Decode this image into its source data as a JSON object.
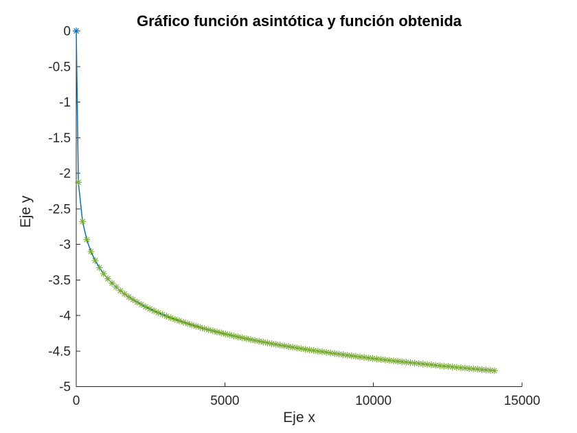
{
  "chart_data": {
    "type": "line",
    "title": "Gráfico función asintótica y función obtenida",
    "xlabel": "Eje x",
    "ylabel": "Eje y",
    "xlim": [
      0,
      15000
    ],
    "ylim": [
      -5,
      0
    ],
    "xticks": [
      0,
      5000,
      10000,
      15000
    ],
    "xtick_labels": [
      "0",
      "5000",
      "10000",
      "15000"
    ],
    "yticks": [
      0,
      -0.5,
      -1,
      -1.5,
      -2,
      -2.5,
      -3,
      -3.5,
      -4,
      -4.5,
      -5
    ],
    "ytick_labels": [
      "0",
      "-0.5",
      "-1",
      "-1.5",
      "-2",
      "-2.5",
      "-3",
      "-3.5",
      "-4",
      "-4.5",
      "-5"
    ],
    "grid": false,
    "legend": "none",
    "background": "#ffffff",
    "axis_color": "#262626",
    "title_color": "#000000",
    "series": [
      {
        "name": "función asintótica",
        "style": "solid-line",
        "color": "#0072BD",
        "line_width": 1.5,
        "marker": "asterisk",
        "marker_visible_only_at_first_point": true,
        "x": [
          0,
          71,
          212,
          354,
          495,
          636,
          778,
          919,
          1061,
          1202,
          1343,
          1485,
          1626,
          1768,
          1909,
          2051,
          2192,
          2333,
          2475,
          2616,
          2758,
          2899,
          3041,
          3182,
          3323,
          3465,
          3606,
          3748,
          3889,
          4030,
          4172,
          4313,
          4455,
          4596,
          4738,
          4879,
          5020,
          5162,
          5303,
          5445,
          5586,
          5728,
          5869,
          6010,
          6152,
          6293,
          6435,
          6576,
          6717,
          6859,
          7000,
          7142,
          7283,
          7425,
          7566,
          7707,
          7849,
          7990,
          8132,
          8273,
          8414,
          8556,
          8697,
          8839,
          8980,
          9122,
          9263,
          9404,
          9546,
          9687,
          9829,
          9970,
          10112,
          10253,
          10394,
          10536,
          10677,
          10819,
          10960,
          11101,
          11243,
          11384,
          11526,
          11667,
          11809,
          11950,
          12091,
          12233,
          12374,
          12516,
          12657,
          12799,
          12940,
          13081,
          13223,
          13364,
          13506,
          13647,
          13788,
          13930,
          14071
        ],
        "y": [
          0,
          -2.129,
          -2.679,
          -2.934,
          -3.102,
          -3.228,
          -3.328,
          -3.412,
          -3.483,
          -3.546,
          -3.601,
          -3.652,
          -3.697,
          -3.739,
          -3.777,
          -3.813,
          -3.846,
          -3.878,
          -3.907,
          -3.935,
          -3.961,
          -3.986,
          -4.01,
          -4.033,
          -4.054,
          -4.075,
          -4.095,
          -4.114,
          -4.133,
          -4.151,
          -4.168,
          -4.185,
          -4.201,
          -4.216,
          -4.232,
          -4.246,
          -4.261,
          -4.274,
          -4.288,
          -4.301,
          -4.314,
          -4.326,
          -4.339,
          -4.351,
          -4.362,
          -4.374,
          -4.385,
          -4.396,
          -4.406,
          -4.417,
          -4.427,
          -4.437,
          -4.447,
          -4.456,
          -4.466,
          -4.475,
          -4.484,
          -4.493,
          -4.502,
          -4.51,
          -4.519,
          -4.527,
          -4.535,
          -4.543,
          -4.551,
          -4.559,
          -4.567,
          -4.574,
          -4.582,
          -4.589,
          -4.597,
          -4.604,
          -4.611,
          -4.618,
          -4.625,
          -4.631,
          -4.638,
          -4.645,
          -4.651,
          -4.657,
          -4.664,
          -4.67,
          -4.676,
          -4.682,
          -4.688,
          -4.694,
          -4.7,
          -4.706,
          -4.712,
          -4.717,
          -4.723,
          -4.729,
          -4.734,
          -4.739,
          -4.745,
          -4.75,
          -4.755,
          -4.761,
          -4.766,
          -4.771,
          -4.776
        ]
      },
      {
        "name": "función obtenida",
        "style": "markers-only",
        "color": "#77AC30",
        "marker": "asterisk",
        "x": [
          71,
          212,
          354,
          495,
          636,
          778,
          919,
          1061,
          1202,
          1343,
          1485,
          1626,
          1768,
          1909,
          2051,
          2192,
          2333,
          2475,
          2616,
          2758,
          2899,
          3041,
          3182,
          3323,
          3465,
          3606,
          3748,
          3889,
          4030,
          4172,
          4313,
          4455,
          4596,
          4738,
          4879,
          5020,
          5162,
          5303,
          5445,
          5586,
          5728,
          5869,
          6010,
          6152,
          6293,
          6435,
          6576,
          6717,
          6859,
          7000,
          7142,
          7283,
          7425,
          7566,
          7707,
          7849,
          7990,
          8132,
          8273,
          8414,
          8556,
          8697,
          8839,
          8980,
          9122,
          9263,
          9404,
          9546,
          9687,
          9829,
          9970,
          10112,
          10253,
          10394,
          10536,
          10677,
          10819,
          10960,
          11101,
          11243,
          11384,
          11526,
          11667,
          11809,
          11950,
          12091,
          12233,
          12374,
          12516,
          12657,
          12799,
          12940,
          13081,
          13223,
          13364,
          13506,
          13647,
          13788,
          13930,
          14071
        ],
        "y": [
          -2.129,
          -2.679,
          -2.934,
          -3.102,
          -3.228,
          -3.328,
          -3.412,
          -3.483,
          -3.546,
          -3.601,
          -3.652,
          -3.697,
          -3.739,
          -3.777,
          -3.813,
          -3.846,
          -3.878,
          -3.907,
          -3.935,
          -3.961,
          -3.986,
          -4.01,
          -4.033,
          -4.054,
          -4.075,
          -4.095,
          -4.114,
          -4.133,
          -4.151,
          -4.168,
          -4.185,
          -4.201,
          -4.216,
          -4.232,
          -4.246,
          -4.261,
          -4.274,
          -4.288,
          -4.301,
          -4.314,
          -4.326,
          -4.339,
          -4.351,
          -4.362,
          -4.374,
          -4.385,
          -4.396,
          -4.406,
          -4.417,
          -4.427,
          -4.437,
          -4.447,
          -4.456,
          -4.466,
          -4.475,
          -4.484,
          -4.493,
          -4.502,
          -4.51,
          -4.519,
          -4.527,
          -4.535,
          -4.543,
          -4.551,
          -4.559,
          -4.567,
          -4.574,
          -4.582,
          -4.589,
          -4.597,
          -4.604,
          -4.611,
          -4.618,
          -4.625,
          -4.631,
          -4.638,
          -4.645,
          -4.651,
          -4.657,
          -4.664,
          -4.67,
          -4.676,
          -4.682,
          -4.688,
          -4.694,
          -4.7,
          -4.706,
          -4.712,
          -4.717,
          -4.723,
          -4.729,
          -4.734,
          -4.739,
          -4.745,
          -4.75,
          -4.755,
          -4.761,
          -4.766,
          -4.771,
          -4.776
        ]
      }
    ]
  }
}
